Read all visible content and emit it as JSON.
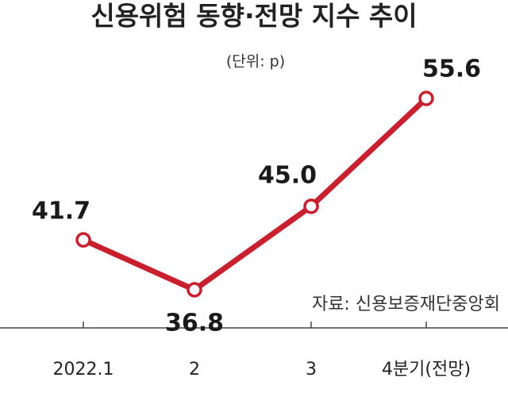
{
  "chart_data": {
    "type": "line",
    "title": "신용위험 동향·전망 지수 추이",
    "subtitle": "(단위: p)",
    "source": "자료: 신용보증재단중앙회",
    "categories": [
      "2022.1",
      "2",
      "3",
      "4분기(전망)"
    ],
    "values": [
      41.7,
      36.8,
      45.0,
      55.6
    ],
    "value_labels": [
      "41.7",
      "36.8",
      "45.0",
      "55.6"
    ],
    "color": "#c8202f"
  }
}
